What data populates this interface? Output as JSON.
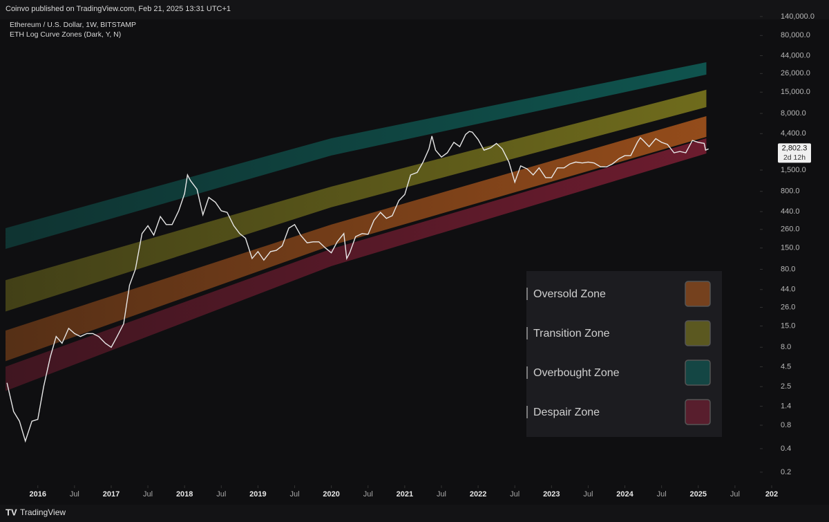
{
  "header": {
    "publisher": "Coinvo published on TradingView.com, Feb 21, 2025 13:31 UTC+1",
    "footer": "TradingView"
  },
  "chart_data": {
    "type": "line",
    "title": "Ethereum / U.S. Dollar, 1W, BITSTAMP",
    "subtitle": "ETH Log Curve Zones (Dark, Y, N)",
    "log_scale": true,
    "color": "#e8e8e8",
    "x": [
      2015.58,
      2015.67,
      2015.75,
      2015.83,
      2015.92,
      2016.0,
      2016.08,
      2016.17,
      2016.25,
      2016.33,
      2016.42,
      2016.5,
      2016.58,
      2016.67,
      2016.75,
      2016.83,
      2016.92,
      2017.0,
      2017.08,
      2017.17,
      2017.25,
      2017.33,
      2017.42,
      2017.5,
      2017.58,
      2017.67,
      2017.75,
      2017.83,
      2017.92,
      2018.0,
      2018.04,
      2018.08,
      2018.17,
      2018.25,
      2018.33,
      2018.42,
      2018.5,
      2018.58,
      2018.67,
      2018.75,
      2018.83,
      2018.92,
      2019.0,
      2019.08,
      2019.17,
      2019.25,
      2019.33,
      2019.42,
      2019.5,
      2019.58,
      2019.67,
      2019.75,
      2019.83,
      2019.92,
      2020.0,
      2020.08,
      2020.17,
      2020.21,
      2020.25,
      2020.33,
      2020.42,
      2020.5,
      2020.58,
      2020.67,
      2020.75,
      2020.83,
      2020.92,
      2021.0,
      2021.08,
      2021.17,
      2021.25,
      2021.33,
      2021.37,
      2021.42,
      2021.5,
      2021.58,
      2021.67,
      2021.75,
      2021.83,
      2021.88,
      2021.92,
      2022.0,
      2022.08,
      2022.17,
      2022.25,
      2022.33,
      2022.42,
      2022.5,
      2022.58,
      2022.67,
      2022.75,
      2022.83,
      2022.92,
      2023.0,
      2023.08,
      2023.17,
      2023.25,
      2023.33,
      2023.42,
      2023.5,
      2023.58,
      2023.67,
      2023.75,
      2023.83,
      2023.92,
      2024.0,
      2024.08,
      2024.17,
      2024.21,
      2024.25,
      2024.33,
      2024.42,
      2024.5,
      2024.58,
      2024.67,
      2024.75,
      2024.83,
      2024.92,
      2025.0,
      2025.08,
      2025.1,
      2025.14
    ],
    "values": [
      2.8,
      1.2,
      0.9,
      0.5,
      0.9,
      0.95,
      2.5,
      6,
      11,
      9,
      14,
      12,
      11,
      12,
      12,
      11,
      9,
      8,
      11,
      16,
      50,
      80,
      230,
      290,
      220,
      380,
      300,
      300,
      450,
      750,
      1300,
      1100,
      850,
      400,
      670,
      580,
      450,
      430,
      290,
      230,
      200,
      110,
      135,
      105,
      135,
      140,
      160,
      270,
      300,
      220,
      175,
      180,
      180,
      150,
      130,
      180,
      230,
      110,
      130,
      210,
      230,
      225,
      340,
      430,
      360,
      390,
      610,
      730,
      1300,
      1400,
      1900,
      2800,
      4100,
      2700,
      2200,
      2500,
      3400,
      3000,
      4300,
      4700,
      4600,
      3700,
      2700,
      2900,
      3300,
      2800,
      1900,
      1050,
      1700,
      1550,
      1300,
      1600,
      1200,
      1200,
      1600,
      1600,
      1800,
      1900,
      1850,
      1900,
      1850,
      1650,
      1650,
      1800,
      2100,
      2300,
      2300,
      3400,
      3900,
      3600,
      3000,
      3800,
      3400,
      3200,
      2500,
      2600,
      2500,
      3600,
      3400,
      3300,
      2700,
      2802.3
    ],
    "last_value": {
      "value": 2802.3,
      "label": "2,802.3"
    },
    "countdown": "2d 12h",
    "zone_x": [
      2015.56,
      2020.0,
      2025.11
    ],
    "zones": [
      {
        "name": "Oversold Zone",
        "color": "#c0601e",
        "upper": [
          13.1,
          300,
          7380
        ],
        "lower": [
          5.3,
          162,
          4000
        ]
      },
      {
        "name": "Transition Zone",
        "color": "#8f8a20",
        "upper": [
          58,
          920,
          16100
        ],
        "lower": [
          23,
          500,
          9640
        ]
      },
      {
        "name": "Overbought Zone",
        "color": "#0f6a62",
        "upper": [
          270,
          3840,
          36300
        ],
        "lower": [
          146,
          2310,
          25200
        ]
      },
      {
        "name": "Despair Zone",
        "color": "#8a2038",
        "upper": [
          4.5,
          146,
          3840
        ],
        "lower": [
          2.2,
          88,
          2450
        ]
      }
    ],
    "xlim": [
      2015.56,
      2025.84
    ],
    "xticks": [
      2016,
      {
        "value": 2016.5,
        "label": "Jul"
      },
      2017,
      {
        "value": 2017.5,
        "label": "Jul"
      },
      2018,
      {
        "value": 2018.5,
        "label": "Jul"
      },
      2019,
      {
        "value": 2019.5,
        "label": "Jul"
      },
      2020,
      {
        "value": 2020.5,
        "label": "Jul"
      },
      2021,
      {
        "value": 2021.5,
        "label": "Jul"
      },
      2022,
      {
        "value": 2022.5,
        "label": "Jul"
      },
      2023,
      {
        "value": 2023.5,
        "label": "Jul"
      },
      2024,
      {
        "value": 2024.5,
        "label": "Jul"
      },
      2025,
      {
        "value": 2025.5,
        "label": "Jul"
      },
      {
        "value": 2026,
        "label": "202"
      }
    ],
    "ylim": [
      0.141,
      228000
    ],
    "yticks": [
      {
        "value": 140000,
        "label": "140,000.0"
      },
      {
        "value": 80000,
        "label": "80,000.0"
      },
      {
        "value": 44000,
        "label": "44,000.0"
      },
      {
        "value": 26000,
        "label": "26,000.0"
      },
      {
        "value": 15000,
        "label": "15,000.0"
      },
      {
        "value": 8000,
        "label": "8,000.0"
      },
      {
        "value": 4400,
        "label": "4,400.0"
      },
      {
        "value": 1500,
        "label": "1,500.0"
      },
      {
        "value": 800,
        "label": "800.0"
      },
      {
        "value": 440,
        "label": "440.0"
      },
      {
        "value": 260,
        "label": "260.0"
      },
      {
        "value": 150,
        "label": "150.0"
      },
      {
        "value": 80,
        "label": "80.0"
      },
      {
        "value": 44,
        "label": "44.0"
      },
      {
        "value": 26,
        "label": "26.0"
      },
      {
        "value": 15,
        "label": "15.0"
      },
      {
        "value": 8,
        "label": "8.0"
      },
      {
        "value": 4.5,
        "label": "4.5"
      },
      {
        "value": 2.5,
        "label": "2.5"
      },
      {
        "value": 1.4,
        "label": "1.4"
      },
      {
        "value": 0.8,
        "label": "0.8"
      },
      {
        "value": 0.4,
        "label": "0.4"
      },
      {
        "value": 0.2,
        "label": "0.2"
      }
    ]
  }
}
